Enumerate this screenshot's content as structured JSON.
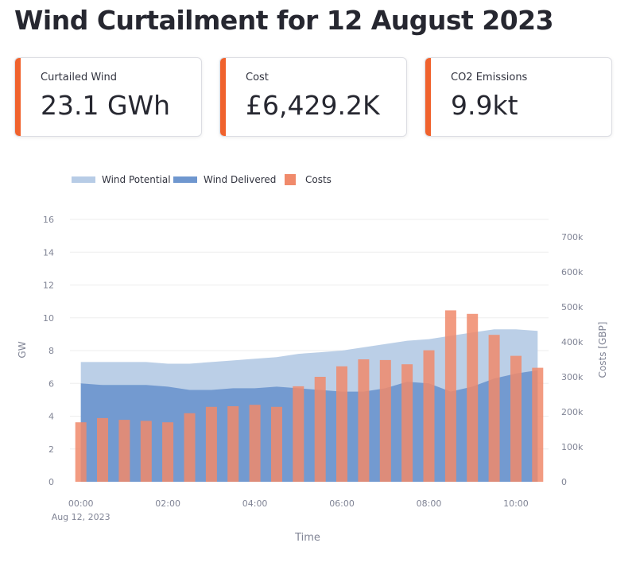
{
  "header": {
    "title": "Wind Curtailment for 12 August 2023"
  },
  "metrics": [
    {
      "label": "Curtailed Wind",
      "value": "23.1 GWh"
    },
    {
      "label": "Cost",
      "value": "£6,429.2K"
    },
    {
      "label": "CO2 Emissions",
      "value": "9.9kt"
    }
  ],
  "colors": {
    "accent": "#f0622d",
    "wind_potential": "#b7cce6",
    "wind_delivered": "#6f97cf",
    "costs": "#f08a6b"
  },
  "chart_data": {
    "type": "bar",
    "legend": {
      "placement": "top-left",
      "entries": [
        "Wind Potential",
        "Wind Delivered",
        "Costs"
      ]
    },
    "xlabel": "Time",
    "x_tick_labels": [
      "00:00",
      "02:00",
      "04:00",
      "06:00",
      "08:00",
      "10:00"
    ],
    "x_tick_sublabel": "Aug 12, 2023",
    "ylabel_left": "GW",
    "ylabel_right": "Costs [GBP]",
    "ylim_left": [
      0,
      16
    ],
    "ylim_right": [
      0,
      750000
    ],
    "y_ticks_left": [
      "0",
      "2",
      "4",
      "6",
      "8",
      "10",
      "12",
      "14",
      "16"
    ],
    "y_ticks_right": [
      "0",
      "100k",
      "200k",
      "300k",
      "400k",
      "500k",
      "600k",
      "700k"
    ],
    "x_hours": [
      0,
      0.5,
      1,
      1.5,
      2,
      2.5,
      3,
      3.5,
      4,
      4.5,
      5,
      5.5,
      6,
      6.5,
      7,
      7.5,
      8,
      8.5,
      9,
      9.5,
      10,
      10.5
    ],
    "series": [
      {
        "name": "Wind Potential",
        "kind": "area",
        "values": [
          7.3,
          7.3,
          7.3,
          7.3,
          7.2,
          7.2,
          7.3,
          7.4,
          7.5,
          7.6,
          7.8,
          7.9,
          8.0,
          8.2,
          8.4,
          8.6,
          8.7,
          8.9,
          9.1,
          9.3,
          9.3,
          9.2
        ]
      },
      {
        "name": "Wind Delivered",
        "kind": "area",
        "values": [
          6.0,
          5.9,
          5.9,
          5.9,
          5.8,
          5.6,
          5.6,
          5.7,
          5.7,
          5.8,
          5.7,
          5.6,
          5.5,
          5.5,
          5.7,
          6.1,
          6.0,
          5.5,
          5.8,
          6.3,
          6.6,
          6.8
        ]
      },
      {
        "name": "Costs",
        "kind": "bar",
        "axis": "right",
        "values": [
          170000,
          182000,
          177000,
          174000,
          170000,
          196000,
          214000,
          216000,
          220000,
          214000,
          273000,
          300000,
          330000,
          350000,
          348000,
          336000,
          376000,
          490000,
          480000,
          420000,
          360000,
          326000
        ]
      }
    ]
  }
}
